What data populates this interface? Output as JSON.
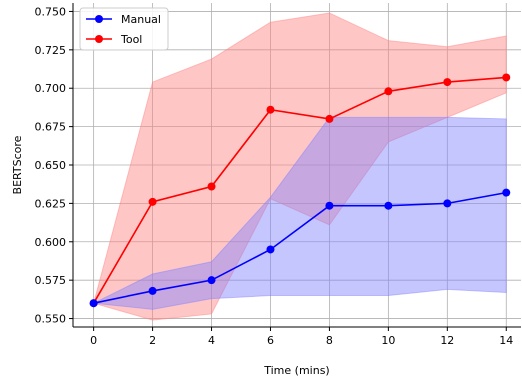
{
  "chart_data": {
    "type": "line",
    "xlabel": "Time (mins)",
    "ylabel": "BERTScore",
    "x": [
      0,
      2,
      4,
      6,
      8,
      10,
      12,
      14
    ],
    "xticks": [
      "0",
      "2",
      "4",
      "6",
      "8",
      "10",
      "12",
      "14"
    ],
    "xlim": [
      -0.7,
      14.5
    ],
    "ylim": [
      0.5445,
      0.7555
    ],
    "yticks": [
      "0.550",
      "0.575",
      "0.600",
      "0.625",
      "0.650",
      "0.675",
      "0.700",
      "0.725",
      "0.750"
    ],
    "grid": true,
    "legend_position": "top-left",
    "series": [
      {
        "name": "Tool",
        "color": "#ff0000",
        "band_color": "#ff8080",
        "values": [
          0.56,
          0.626,
          0.636,
          0.686,
          0.68,
          0.698,
          0.704,
          0.707
        ],
        "lower": [
          0.56,
          0.549,
          0.553,
          0.628,
          0.611,
          0.665,
          0.681,
          0.697
        ],
        "upper": [
          0.56,
          0.704,
          0.719,
          0.743,
          0.749,
          0.731,
          0.727,
          0.734
        ]
      },
      {
        "name": "Manual",
        "color": "#0000ff",
        "band_color": "#8080ff",
        "values": [
          0.56,
          0.568,
          0.575,
          0.595,
          0.6235,
          0.6235,
          0.625,
          0.632
        ],
        "lower": [
          0.56,
          0.556,
          0.563,
          0.565,
          0.565,
          0.565,
          0.569,
          0.567
        ],
        "upper": [
          0.56,
          0.579,
          0.587,
          0.629,
          0.681,
          0.681,
          0.681,
          0.68
        ]
      }
    ],
    "legend_order": [
      "Manual",
      "Tool"
    ]
  }
}
